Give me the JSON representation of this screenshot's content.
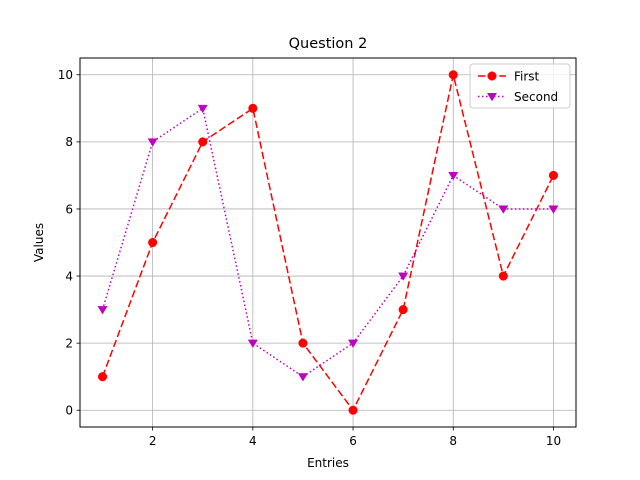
{
  "chart_data": {
    "type": "line",
    "title": "Question 2",
    "xlabel": "Entries",
    "ylabel": "Values",
    "x": [
      1,
      2,
      3,
      4,
      5,
      6,
      7,
      8,
      9,
      10
    ],
    "xlim": [
      0.55,
      10.45
    ],
    "ylim": [
      -0.5,
      10.5
    ],
    "xticks": [
      2,
      4,
      6,
      8,
      10
    ],
    "yticks": [
      0,
      2,
      4,
      6,
      8,
      10
    ],
    "grid": true,
    "legend_position": "top-right",
    "series": [
      {
        "name": "First",
        "values": [
          1,
          5,
          8,
          9,
          2,
          0,
          3,
          10,
          4,
          7
        ],
        "color": "#ff0000",
        "line_style": "dashed",
        "marker": "circle"
      },
      {
        "name": "Second",
        "values": [
          3,
          8,
          9,
          2,
          1,
          2,
          4,
          7,
          6,
          6
        ],
        "color": "#bf00bf",
        "line_style": "dotted",
        "marker": "triangle-down"
      }
    ]
  }
}
